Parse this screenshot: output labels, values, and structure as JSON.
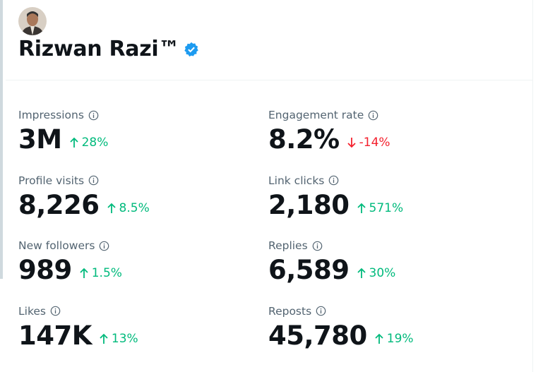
{
  "profile": {
    "name": "Rizwan Razi™",
    "verified": true
  },
  "metrics": [
    {
      "label": "Impressions",
      "value": "3M",
      "change": "28%",
      "direction": "up"
    },
    {
      "label": "Engagement rate",
      "value": "8.2%",
      "change": "-14%",
      "direction": "down"
    },
    {
      "label": "Profile visits",
      "value": "8,226",
      "change": "8.5%",
      "direction": "up"
    },
    {
      "label": "Link clicks",
      "value": "2,180",
      "change": "571%",
      "direction": "up"
    },
    {
      "label": "New followers",
      "value": "989",
      "change": "1.5%",
      "direction": "up"
    },
    {
      "label": "Replies",
      "value": "6,589",
      "change": "30%",
      "direction": "up"
    },
    {
      "label": "Likes",
      "value": "147K",
      "change": "13%",
      "direction": "up"
    },
    {
      "label": "Reposts",
      "value": "45,780",
      "change": "19%",
      "direction": "up"
    }
  ]
}
